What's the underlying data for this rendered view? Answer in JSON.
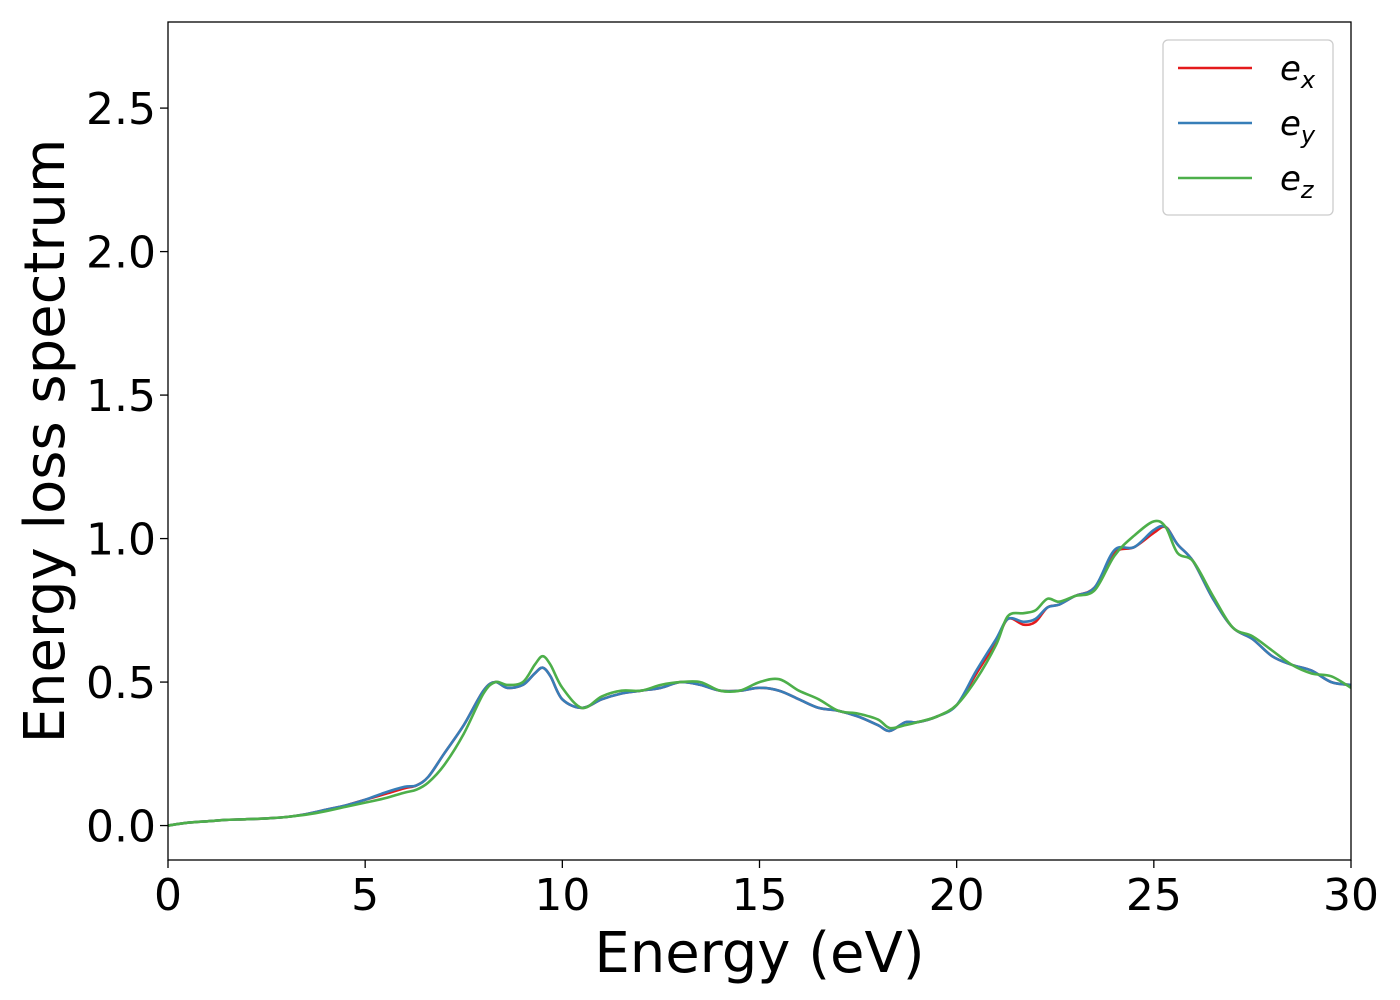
{
  "chart_data": {
    "type": "line",
    "xlabel": "Energy (eV)",
    "ylabel": "Energy loss spectrum",
    "xlim": [
      0,
      30
    ],
    "ylim": [
      -0.12,
      2.8
    ],
    "xticks": [
      0,
      5,
      10,
      15,
      20,
      25,
      30
    ],
    "xtick_labels": [
      "0",
      "5",
      "10",
      "15",
      "20",
      "25",
      "30"
    ],
    "yticks": [
      0.0,
      0.5,
      1.0,
      1.5,
      2.0,
      2.5
    ],
    "ytick_labels": [
      "0.0",
      "0.5",
      "1.0",
      "1.5",
      "2.0",
      "2.5"
    ],
    "grid": false,
    "legend_position": "top-right",
    "x": [
      0,
      0.5,
      1,
      1.5,
      2,
      2.5,
      3,
      3.5,
      4,
      4.5,
      5,
      5.5,
      6,
      6.3,
      6.6,
      7,
      7.5,
      8,
      8.3,
      8.6,
      9,
      9.3,
      9.5,
      9.7,
      10,
      10.5,
      11,
      11.5,
      12,
      12.5,
      13,
      13.5,
      14,
      14.5,
      15,
      15.5,
      16,
      16.5,
      17,
      17.5,
      18,
      18.3,
      18.7,
      19,
      19.5,
      20,
      20.5,
      21,
      21.3,
      21.7,
      22,
      22.3,
      22.6,
      23,
      23.5,
      24,
      24.5,
      25,
      25.3,
      25.6,
      26,
      26.5,
      27,
      27.5,
      28,
      28.5,
      29,
      29.5,
      30
    ],
    "series": [
      {
        "name": "e",
        "subscript": "x",
        "color": "#e41a1c",
        "values": [
          0.0,
          0.01,
          0.015,
          0.02,
          0.022,
          0.025,
          0.03,
          0.04,
          0.055,
          0.07,
          0.09,
          0.11,
          0.13,
          0.14,
          0.17,
          0.25,
          0.35,
          0.47,
          0.5,
          0.48,
          0.49,
          0.53,
          0.55,
          0.52,
          0.44,
          0.41,
          0.44,
          0.46,
          0.47,
          0.48,
          0.5,
          0.49,
          0.47,
          0.47,
          0.48,
          0.47,
          0.44,
          0.41,
          0.4,
          0.38,
          0.35,
          0.33,
          0.36,
          0.36,
          0.38,
          0.42,
          0.53,
          0.64,
          0.72,
          0.7,
          0.71,
          0.76,
          0.77,
          0.8,
          0.83,
          0.95,
          0.97,
          1.02,
          1.04,
          0.98,
          0.92,
          0.79,
          0.69,
          0.65,
          0.59,
          0.56,
          0.54,
          0.5,
          0.49
        ]
      },
      {
        "name": "e",
        "subscript": "y",
        "color": "#377eb8",
        "values": [
          0.0,
          0.01,
          0.015,
          0.02,
          0.022,
          0.025,
          0.03,
          0.04,
          0.055,
          0.07,
          0.09,
          0.115,
          0.135,
          0.14,
          0.17,
          0.25,
          0.35,
          0.47,
          0.5,
          0.48,
          0.49,
          0.53,
          0.55,
          0.52,
          0.44,
          0.41,
          0.44,
          0.46,
          0.47,
          0.48,
          0.5,
          0.49,
          0.47,
          0.47,
          0.48,
          0.47,
          0.44,
          0.41,
          0.4,
          0.38,
          0.35,
          0.33,
          0.36,
          0.36,
          0.38,
          0.42,
          0.54,
          0.65,
          0.72,
          0.71,
          0.72,
          0.76,
          0.77,
          0.8,
          0.83,
          0.96,
          0.97,
          1.03,
          1.04,
          0.98,
          0.92,
          0.79,
          0.69,
          0.65,
          0.59,
          0.56,
          0.54,
          0.5,
          0.49
        ]
      },
      {
        "name": "e",
        "subscript": "z",
        "color": "#4daf4a",
        "values": [
          0.0,
          0.01,
          0.015,
          0.02,
          0.022,
          0.025,
          0.03,
          0.038,
          0.05,
          0.065,
          0.08,
          0.095,
          0.115,
          0.125,
          0.15,
          0.21,
          0.32,
          0.46,
          0.5,
          0.49,
          0.5,
          0.56,
          0.59,
          0.56,
          0.48,
          0.41,
          0.45,
          0.47,
          0.47,
          0.49,
          0.5,
          0.5,
          0.47,
          0.47,
          0.5,
          0.51,
          0.47,
          0.44,
          0.4,
          0.39,
          0.37,
          0.34,
          0.35,
          0.36,
          0.38,
          0.42,
          0.51,
          0.63,
          0.73,
          0.74,
          0.75,
          0.79,
          0.78,
          0.8,
          0.82,
          0.94,
          1.01,
          1.06,
          1.04,
          0.95,
          0.92,
          0.8,
          0.69,
          0.66,
          0.61,
          0.56,
          0.53,
          0.52,
          0.48
        ]
      }
    ]
  }
}
